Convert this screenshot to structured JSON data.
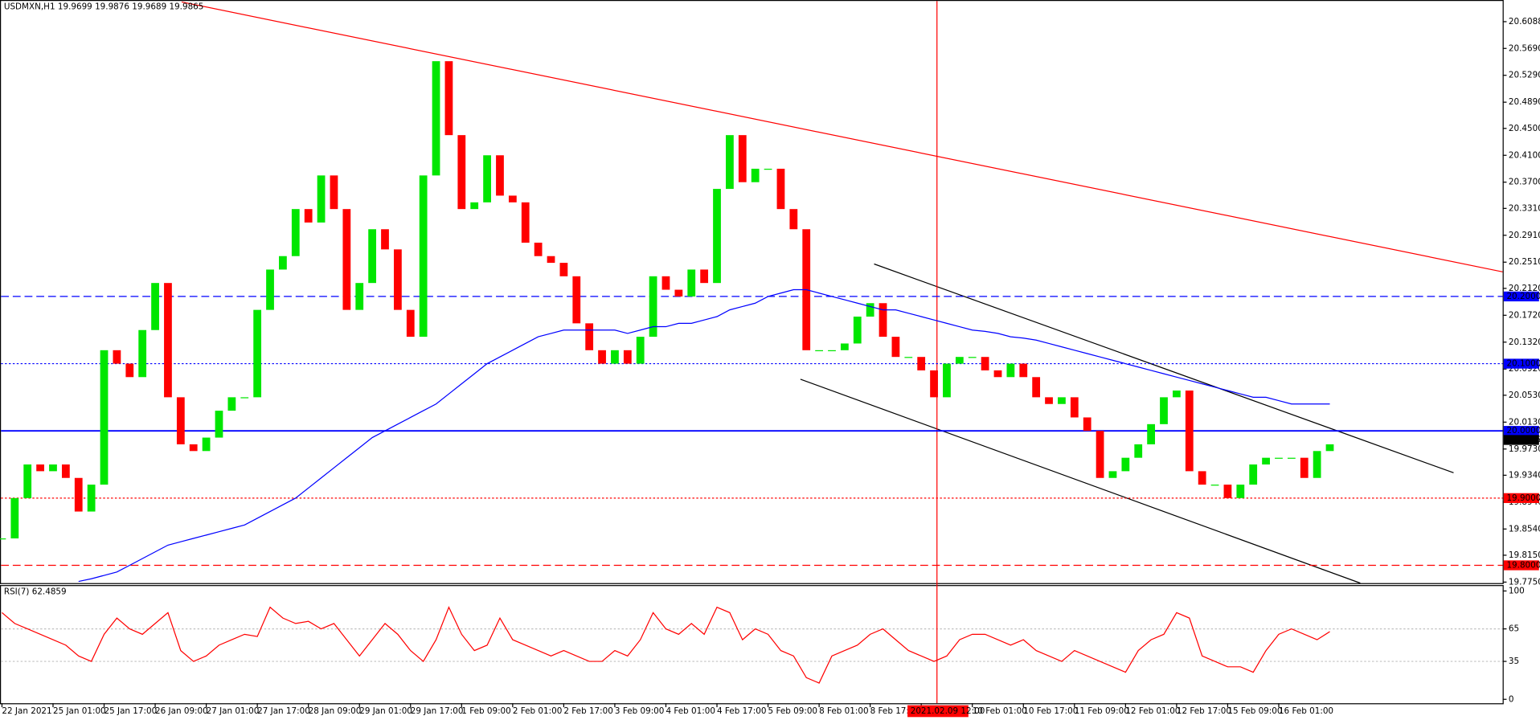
{
  "chart_data": {
    "type": "candlestick",
    "title": "USDMXN,H1  19.9699 19.9876 19.9689 19.9865",
    "indicator_title": "RSI(7) 62.4859",
    "categories": [
      "22 Jan 2021",
      null,
      null,
      null,
      "25 Jan 01:00",
      null,
      null,
      null,
      "25 Jan 17:00",
      null,
      null,
      null,
      "26 Jan 09:00",
      null,
      null,
      null,
      "27 Jan 01:00",
      null,
      null,
      null,
      "27 Jan 17:00",
      null,
      null,
      null,
      "28 Jan 09:00",
      null,
      null,
      null,
      "29 Jan 01:00",
      null,
      null,
      null,
      "29 Jan 17:00",
      null,
      null,
      null,
      "1 Feb 09:00",
      null,
      null,
      null,
      "2 Feb 01:00",
      null,
      null,
      null,
      "2 Feb 17:00",
      null,
      null,
      null,
      "3 Feb 09:00",
      null,
      null,
      null,
      "4 Feb 01:00",
      null,
      null,
      null,
      "4 Feb 17:00",
      null,
      null,
      null,
      "5 Feb 09:00",
      null,
      null,
      null,
      "8 Feb 01:00",
      null,
      null,
      null,
      "8 Feb 17:00",
      null,
      null,
      null,
      "2021.02.09 12:00",
      null,
      null,
      null,
      "10 Feb 01:00",
      null,
      null,
      null,
      "10 Feb 17:00",
      null,
      null,
      null,
      "11 Feb 09:00",
      null,
      null,
      null,
      "12 Feb 01:00",
      null,
      null,
      null,
      "12 Feb 17:00",
      null,
      null,
      null,
      "15 Feb 09:00",
      null,
      null,
      null,
      "16 Feb 01:00",
      null,
      null,
      null,
      null
    ],
    "series": [
      {
        "name": "USDMXN",
        "up_color": "#00e600",
        "down_color": "#ff0000",
        "values": [
          19.84,
          19.9,
          19.95,
          19.94,
          19.95,
          19.93,
          19.88,
          19.92,
          20.12,
          20.1,
          20.08,
          20.15,
          20.22,
          20.05,
          19.98,
          19.97,
          19.99,
          20.03,
          20.05,
          20.05,
          20.18,
          20.24,
          20.26,
          20.33,
          20.31,
          20.38,
          20.33,
          20.18,
          20.22,
          20.3,
          20.27,
          20.18,
          20.14,
          20.38,
          20.55,
          20.44,
          20.33,
          20.34,
          20.41,
          20.35,
          20.34,
          20.28,
          20.26,
          20.25,
          20.23,
          20.16,
          20.12,
          20.1,
          20.12,
          20.1,
          20.14,
          20.23,
          20.21,
          20.2,
          20.24,
          20.22,
          20.36,
          20.44,
          20.37,
          20.39,
          20.39,
          20.33,
          20.3,
          20.12,
          20.12,
          20.12,
          20.13,
          20.17,
          20.19,
          20.14,
          20.11,
          20.11,
          20.09,
          20.05,
          20.1,
          20.11,
          20.11,
          20.09,
          20.08,
          20.1,
          20.08,
          20.05,
          20.04,
          20.05,
          20.02,
          20.0,
          19.93,
          19.94,
          19.96,
          19.98,
          20.01,
          20.05,
          20.06,
          19.94,
          19.92,
          19.92,
          19.9,
          19.92,
          19.95,
          19.96,
          19.96,
          19.96,
          19.93,
          19.97,
          19.98
        ]
      },
      {
        "name": "MA",
        "color": "#0000ff",
        "values": [
          null,
          null,
          null,
          null,
          null,
          null,
          19.776,
          19.78,
          19.785,
          19.79,
          19.8,
          19.81,
          19.82,
          19.83,
          19.835,
          19.84,
          19.845,
          19.85,
          19.855,
          19.86,
          19.87,
          19.88,
          19.89,
          19.9,
          19.915,
          19.93,
          19.945,
          19.96,
          19.975,
          19.99,
          20.0,
          20.01,
          20.02,
          20.03,
          20.04,
          20.055,
          20.07,
          20.085,
          20.1,
          20.11,
          20.12,
          20.13,
          20.14,
          20.145,
          20.15,
          20.15,
          20.15,
          20.15,
          20.15,
          20.145,
          20.15,
          20.155,
          20.155,
          20.16,
          20.16,
          20.165,
          20.17,
          20.18,
          20.185,
          20.19,
          20.2,
          20.205,
          20.21,
          20.21,
          20.205,
          20.2,
          20.195,
          20.19,
          20.185,
          20.18,
          20.18,
          20.175,
          20.17,
          20.165,
          20.16,
          20.155,
          20.15,
          20.148,
          20.145,
          20.14,
          20.138,
          20.135,
          20.13,
          20.125,
          20.12,
          20.115,
          20.11,
          20.105,
          20.1,
          20.095,
          20.09,
          20.085,
          20.08,
          20.075,
          20.07,
          20.065,
          20.06,
          20.055,
          20.05,
          20.05,
          20.045,
          20.04,
          20.04,
          20.04,
          20.04
        ]
      },
      {
        "name": "RSI(7)",
        "color": "#ff0000",
        "axis": "y2",
        "values": [
          80,
          70,
          65,
          60,
          55,
          50,
          40,
          35,
          60,
          75,
          65,
          60,
          70,
          80,
          45,
          35,
          40,
          50,
          55,
          60,
          58,
          85,
          75,
          70,
          72,
          65,
          70,
          55,
          40,
          55,
          70,
          60,
          45,
          35,
          55,
          85,
          60,
          45,
          50,
          75,
          55,
          50,
          45,
          40,
          45,
          40,
          35,
          35,
          45,
          40,
          55,
          80,
          65,
          60,
          70,
          60,
          85,
          80,
          55,
          65,
          60,
          45,
          40,
          20,
          15,
          40,
          45,
          50,
          60,
          65,
          55,
          45,
          40,
          35,
          40,
          55,
          60,
          60,
          55,
          50,
          55,
          45,
          40,
          35,
          45,
          40,
          35,
          30,
          25,
          45,
          55,
          60,
          80,
          75,
          40,
          35,
          30,
          30,
          25,
          45,
          60,
          65,
          60,
          55,
          62.4859
        ]
      }
    ],
    "ylim": [
      19.775,
      20.6088
    ],
    "yticks": [
      {
        "value": 20.6088,
        "label": "20.6088"
      },
      {
        "value": 20.569,
        "label": "20.5690"
      },
      {
        "value": 20.529,
        "label": "20.5290"
      },
      {
        "value": 20.489,
        "label": "20.4890"
      },
      {
        "value": 20.45,
        "label": "20.4500"
      },
      {
        "value": 20.41,
        "label": "20.4100"
      },
      {
        "value": 20.37,
        "label": "20.3700"
      },
      {
        "value": 20.331,
        "label": "20.3310"
      },
      {
        "value": 20.291,
        "label": "20.2910"
      },
      {
        "value": 20.251,
        "label": "20.2510"
      },
      {
        "value": 20.212,
        "label": "20.2120"
      },
      {
        "value": 20.172,
        "label": "20.1720"
      },
      {
        "value": 20.132,
        "label": "20.1320"
      },
      {
        "value": 20.092,
        "label": "20.0920"
      },
      {
        "value": 20.053,
        "label": "20.0530"
      },
      {
        "value": 20.013,
        "label": "20.0130"
      },
      {
        "value": 19.973,
        "label": "19.9730"
      },
      {
        "value": 19.934,
        "label": "19.9340"
      },
      {
        "value": 19.894,
        "label": "19.8940"
      },
      {
        "value": 19.854,
        "label": "19.8540"
      },
      {
        "value": 19.815,
        "label": "19.8150"
      },
      {
        "value": 19.775,
        "label": "19.7750"
      }
    ],
    "y2lim": [
      0,
      100
    ],
    "y2ticks": [
      0,
      35,
      65,
      100
    ],
    "levels": [
      {
        "value": 20.2,
        "label": "20.2000",
        "color": "#0000ff",
        "style": "dashed"
      },
      {
        "value": 20.1,
        "label": "20.1000",
        "color": "#0000ff",
        "style": "dotted"
      },
      {
        "value": 20.0,
        "label": "20.0000",
        "color": "#0000ff",
        "style": "solid"
      },
      {
        "value": 19.9,
        "label": "19.9000",
        "color": "#ff0000",
        "style": "dotted"
      },
      {
        "value": 19.8,
        "label": "19.8000",
        "color": "#ff0000",
        "style": "dashed"
      }
    ],
    "current_price": {
      "value": 19.9865,
      "label": "19.9865"
    }
  }
}
